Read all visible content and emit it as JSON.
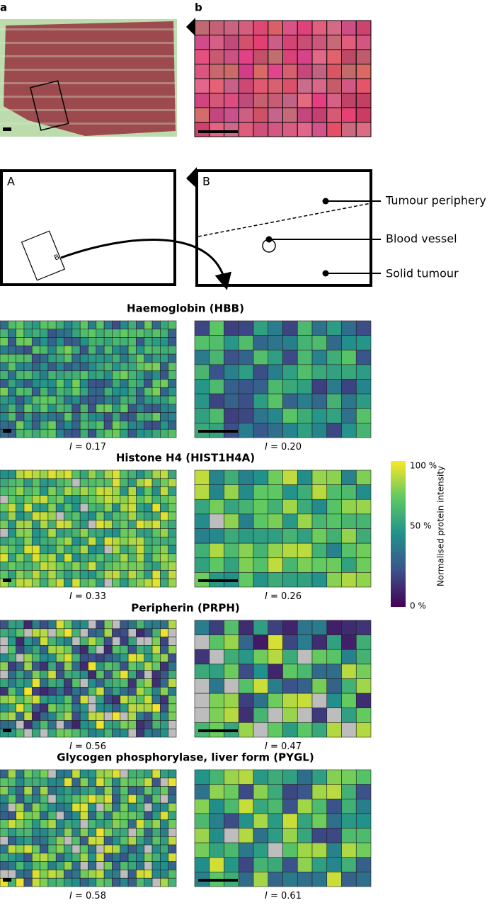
{
  "panel_labels": [
    "a",
    "b"
  ],
  "schematic": {
    "box_labels": [
      "A",
      "B"
    ],
    "inset_label": "B",
    "annotations": [
      "Tumour periphery",
      "Blood vessel",
      "Solid tumour"
    ]
  },
  "index_symbol": "I",
  "proteins": [
    {
      "title": "Haemoglobin (HBB)",
      "left_index": "= 0.17",
      "right_index": "= 0.20"
    },
    {
      "title": "Histone H4 (HIST1H4A)",
      "left_index": "= 0.33",
      "right_index": "= 0.26"
    },
    {
      "title": "Peripherin (PRPH)",
      "left_index": "= 0.56",
      "right_index": "= 0.47"
    },
    {
      "title": "Glycogen phosphorylase, liver form (PYGL)",
      "left_index": "= 0.58",
      "right_index": "= 0.61"
    }
  ],
  "colorbar": {
    "label": "Normalised protein intensity",
    "ticks": [
      "100 %",
      "50 %",
      "0 %"
    ]
  }
}
